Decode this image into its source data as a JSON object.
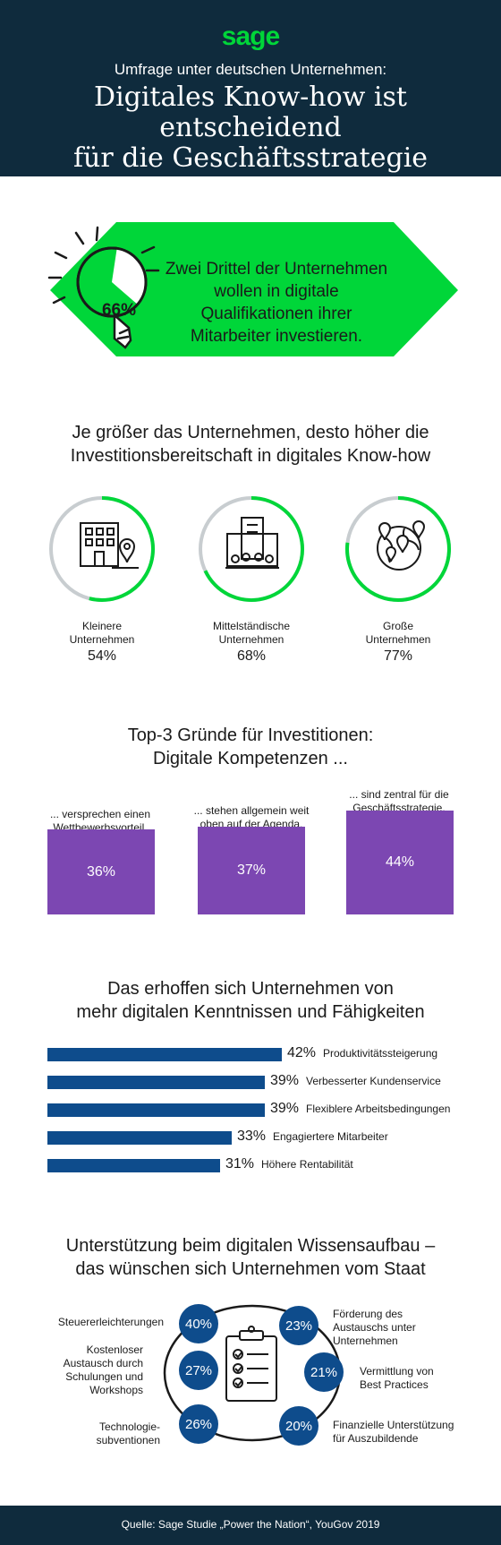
{
  "header": {
    "logo": "sage",
    "subtitle": "Umfrage unter deutschen Unternehmen:",
    "title_line1": "Digitales Know-how ist entscheidend",
    "title_line2": "für die Geschäftsstrategie"
  },
  "hero": {
    "percent": "66%",
    "text_lines": [
      "Zwei Drittel der Unternehmen",
      "wollen in digitale",
      "Qualifikationen ihrer",
      "Mitarbeiter investieren."
    ],
    "value": 0.66
  },
  "company_size": {
    "heading_lines": [
      "Je größer das Unternehmen, desto höher die",
      "Investitionsbereitschaft in digitales Know-how"
    ],
    "items": [
      {
        "label_lines": [
          "Kleinere",
          "Unternehmen"
        ],
        "percent": "54%",
        "value": 54,
        "icon": "small-building-icon"
      },
      {
        "label_lines": [
          "Mittelständische",
          "Unternehmen"
        ],
        "percent": "68%",
        "value": 68,
        "icon": "office-building-icon"
      },
      {
        "label_lines": [
          "Große",
          "Unternehmen"
        ],
        "percent": "77%",
        "value": 77,
        "icon": "globe-locations-icon"
      }
    ],
    "accent": "#00d639"
  },
  "reasons": {
    "heading_lines": [
      "Top-3 Gründe für Investitionen:",
      "Digitale Kompetenzen ..."
    ],
    "items": [
      {
        "label_lines": [
          "... versprechen einen",
          "Wettbewerbsvorteil."
        ],
        "percent": "36%",
        "value": 36
      },
      {
        "label_lines": [
          "... stehen allgemein weit",
          "oben auf der Agenda."
        ],
        "percent": "37%",
        "value": 37
      },
      {
        "label_lines": [
          "... sind zentral für die",
          "Geschäftsstrategie."
        ],
        "percent": "44%",
        "value": 44
      }
    ],
    "color": "#7c47b2"
  },
  "hopes": {
    "heading_lines": [
      "Das erhoffen sich Unternehmen von",
      "mehr digitalen Kenntnissen und Fähigkeiten"
    ],
    "items": [
      {
        "percent": "42%",
        "value": 42,
        "label": "Produktivitätssteigerung"
      },
      {
        "percent": "39%",
        "value": 39,
        "label": "Verbesserter Kundenservice"
      },
      {
        "percent": "39%",
        "value": 39,
        "label": "Flexiblere Arbeitsbedingungen"
      },
      {
        "percent": "33%",
        "value": 33,
        "label": "Engagiertere Mitarbeiter"
      },
      {
        "percent": "31%",
        "value": 31,
        "label": "Höhere Rentabilität"
      }
    ],
    "color": "#0e4c8c"
  },
  "support": {
    "heading_lines": [
      "Unterstützung beim digitalen Wissensaufbau –",
      "das wünschen sich Unternehmen vom Staat"
    ],
    "left": [
      {
        "percent": "40%",
        "label_lines": [
          "Steuererleichterungen"
        ]
      },
      {
        "percent": "27%",
        "label_lines": [
          "Kostenloser",
          "Austausch durch",
          "Schulungen und",
          "Workshops"
        ]
      },
      {
        "percent": "26%",
        "label_lines": [
          "Technologie-",
          "subventionen"
        ]
      }
    ],
    "right": [
      {
        "percent": "23%",
        "label_lines": [
          "Förderung des",
          "Austauschs unter",
          "Unternehmen"
        ]
      },
      {
        "percent": "21%",
        "label_lines": [
          "Vermittlung von",
          "Best Practices"
        ]
      },
      {
        "percent": "20%",
        "label_lines": [
          "Finanzielle Unterstützung",
          "für Auszubildende"
        ]
      }
    ],
    "center_icon": "clipboard-checklist-icon"
  },
  "footer": {
    "source": "Quelle: Sage Studie „Power the Nation“, YouGov 2019"
  }
}
